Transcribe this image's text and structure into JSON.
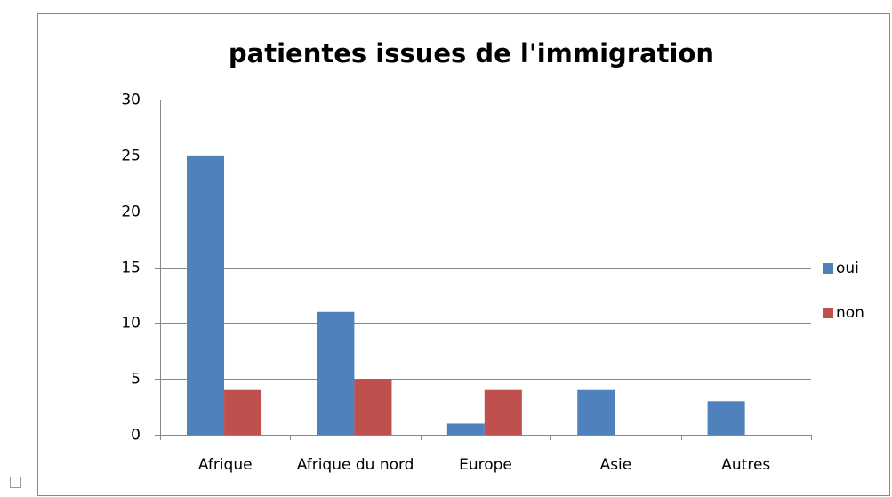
{
  "chart_data": {
    "type": "bar",
    "title": "patientes issues de l'immigration",
    "categories": [
      "Afrique",
      "Afrique du nord",
      "Europe",
      "Asie",
      "Autres"
    ],
    "series": [
      {
        "name": "oui",
        "color": "#4f81bd",
        "values": [
          25,
          11,
          1,
          4,
          3
        ]
      },
      {
        "name": "non",
        "color": "#c0504d",
        "values": [
          4,
          5,
          4,
          0,
          0
        ]
      }
    ],
    "ylim": [
      0,
      30
    ],
    "yticks": [
      0,
      5,
      10,
      15,
      20,
      25,
      30
    ],
    "grid": true,
    "legend": "right"
  }
}
